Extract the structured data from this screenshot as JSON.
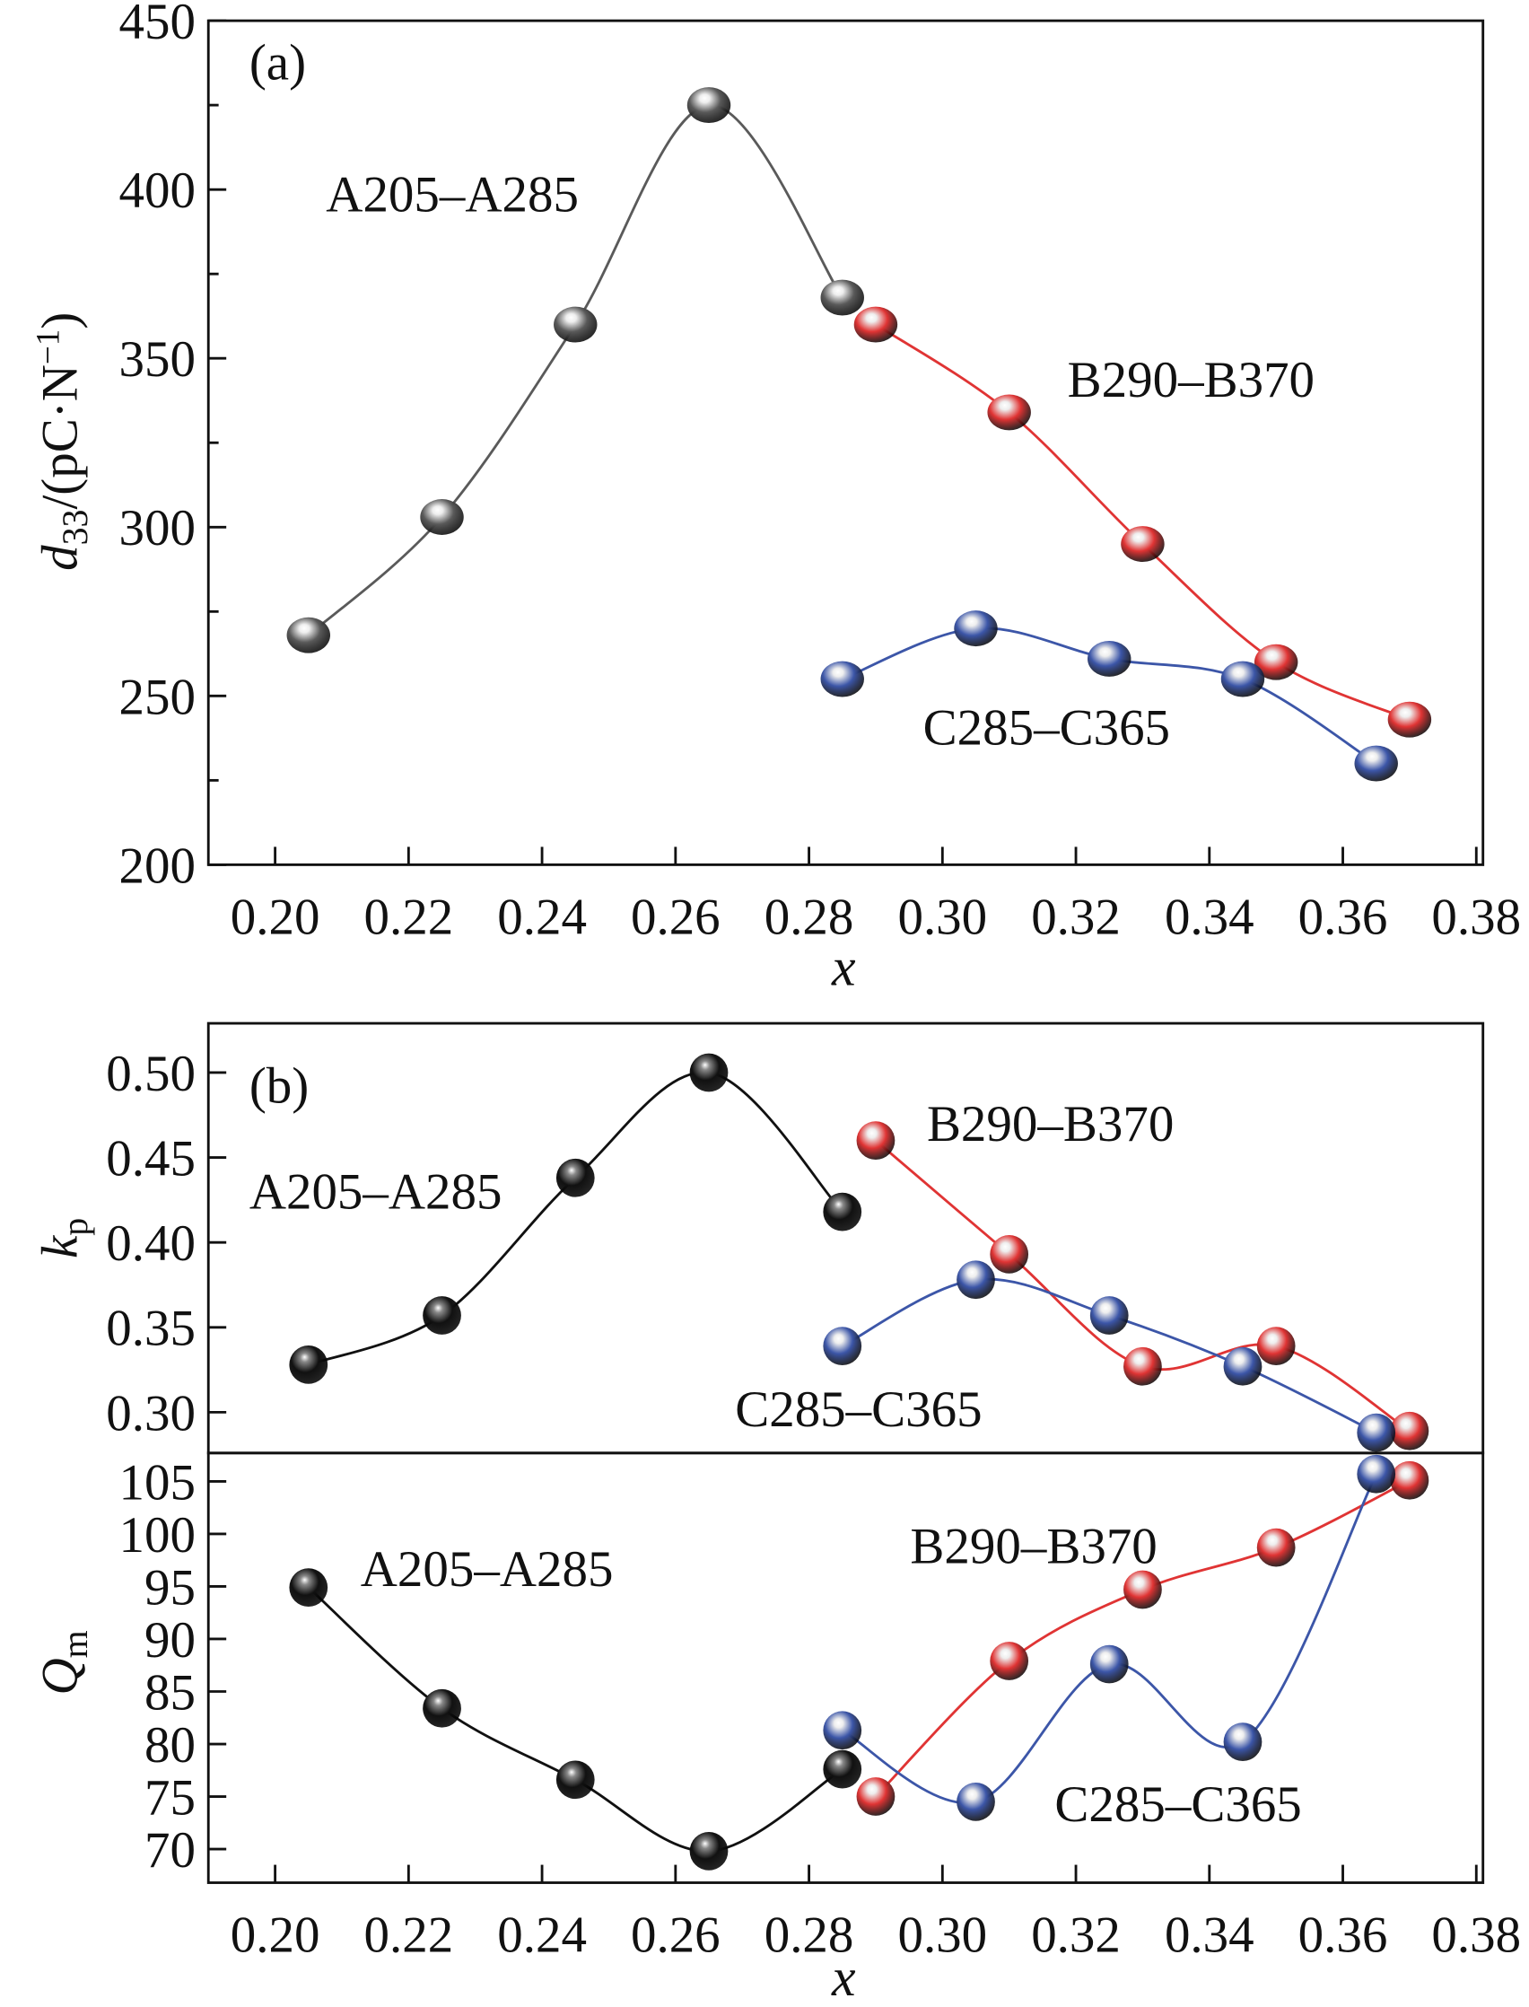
{
  "chart_data": [
    {
      "type": "line",
      "panel_label": "(a)",
      "xlabel": "x",
      "ylabel": {
        "main": "d",
        "sub": "33",
        "unit": "/(pC·N",
        "sup": "−1",
        "close": ")"
      },
      "xlim": [
        0.19,
        0.381
      ],
      "ylim": [
        200,
        450
      ],
      "xticks": [
        "0.20",
        "0.22",
        "0.24",
        "0.26",
        "0.28",
        "0.30",
        "0.32",
        "0.34",
        "0.36",
        "0.38"
      ],
      "yticks": [
        "200",
        "250",
        "300",
        "350",
        "400",
        "450"
      ],
      "series": [
        {
          "name": "A205–A285",
          "color": "#5a5a5a",
          "x": [
            0.205,
            0.225,
            0.245,
            0.265,
            0.285
          ],
          "y": [
            268,
            303,
            360,
            425,
            368
          ]
        },
        {
          "name": "B290–B370",
          "color": "#e03434",
          "x": [
            0.29,
            0.31,
            0.33,
            0.35,
            0.37
          ],
          "y": [
            360,
            334,
            295,
            260,
            243
          ]
        },
        {
          "name": "C285–C365",
          "color": "#3c56a8",
          "x": [
            0.285,
            0.305,
            0.325,
            0.345,
            0.365
          ],
          "y": [
            255,
            270,
            261,
            255,
            230
          ]
        }
      ]
    },
    {
      "type": "line",
      "panel_label": "(b)",
      "xlabel": "x",
      "ylabel": {
        "main": "k",
        "sub": "p"
      },
      "xlim": [
        0.19,
        0.381
      ],
      "ylim": [
        0.276,
        0.529
      ],
      "xticks": [],
      "yticks": [
        "0.30",
        "0.35",
        "0.40",
        "0.45",
        "0.50"
      ],
      "series": [
        {
          "name": "A205–A285",
          "color": "#111111",
          "x": [
            0.205,
            0.225,
            0.245,
            0.265,
            0.285
          ],
          "y": [
            0.328,
            0.357,
            0.438,
            0.5,
            0.418
          ]
        },
        {
          "name": "B290–B370",
          "color": "#e03434",
          "x": [
            0.29,
            0.31,
            0.33,
            0.35,
            0.37
          ],
          "y": [
            0.46,
            0.393,
            0.327,
            0.339,
            0.289
          ]
        },
        {
          "name": "C285–C365",
          "color": "#3c56a8",
          "x": [
            0.285,
            0.305,
            0.325,
            0.345,
            0.365
          ],
          "y": [
            0.339,
            0.378,
            0.357,
            0.327,
            0.288
          ]
        }
      ]
    },
    {
      "type": "line",
      "panel_label": "",
      "xlabel": "x",
      "ylabel": {
        "main": "Q",
        "sub": "m"
      },
      "xlim": [
        0.19,
        0.381
      ],
      "ylim": [
        66.8,
        107.7
      ],
      "xticks": [
        "0.20",
        "0.22",
        "0.24",
        "0.26",
        "0.28",
        "0.30",
        "0.32",
        "0.34",
        "0.36",
        "0.38"
      ],
      "yticks": [
        "70",
        "75",
        "80",
        "85",
        "90",
        "95",
        "100",
        "105"
      ],
      "series": [
        {
          "name": "A205–A285",
          "color": "#111111",
          "x": [
            0.205,
            0.225,
            0.245,
            0.265,
            0.285
          ],
          "y": [
            94.9,
            83.4,
            76.6,
            69.8,
            77.6
          ]
        },
        {
          "name": "B290–B370",
          "color": "#e03434",
          "x": [
            0.29,
            0.31,
            0.33,
            0.35,
            0.37
          ],
          "y": [
            75.0,
            87.9,
            94.7,
            98.7,
            105.1
          ]
        },
        {
          "name": "C285–C365",
          "color": "#3c56a8",
          "x": [
            0.285,
            0.305,
            0.325,
            0.345,
            0.365
          ],
          "y": [
            81.3,
            74.5,
            87.6,
            80.2,
            105.7
          ]
        }
      ]
    }
  ]
}
